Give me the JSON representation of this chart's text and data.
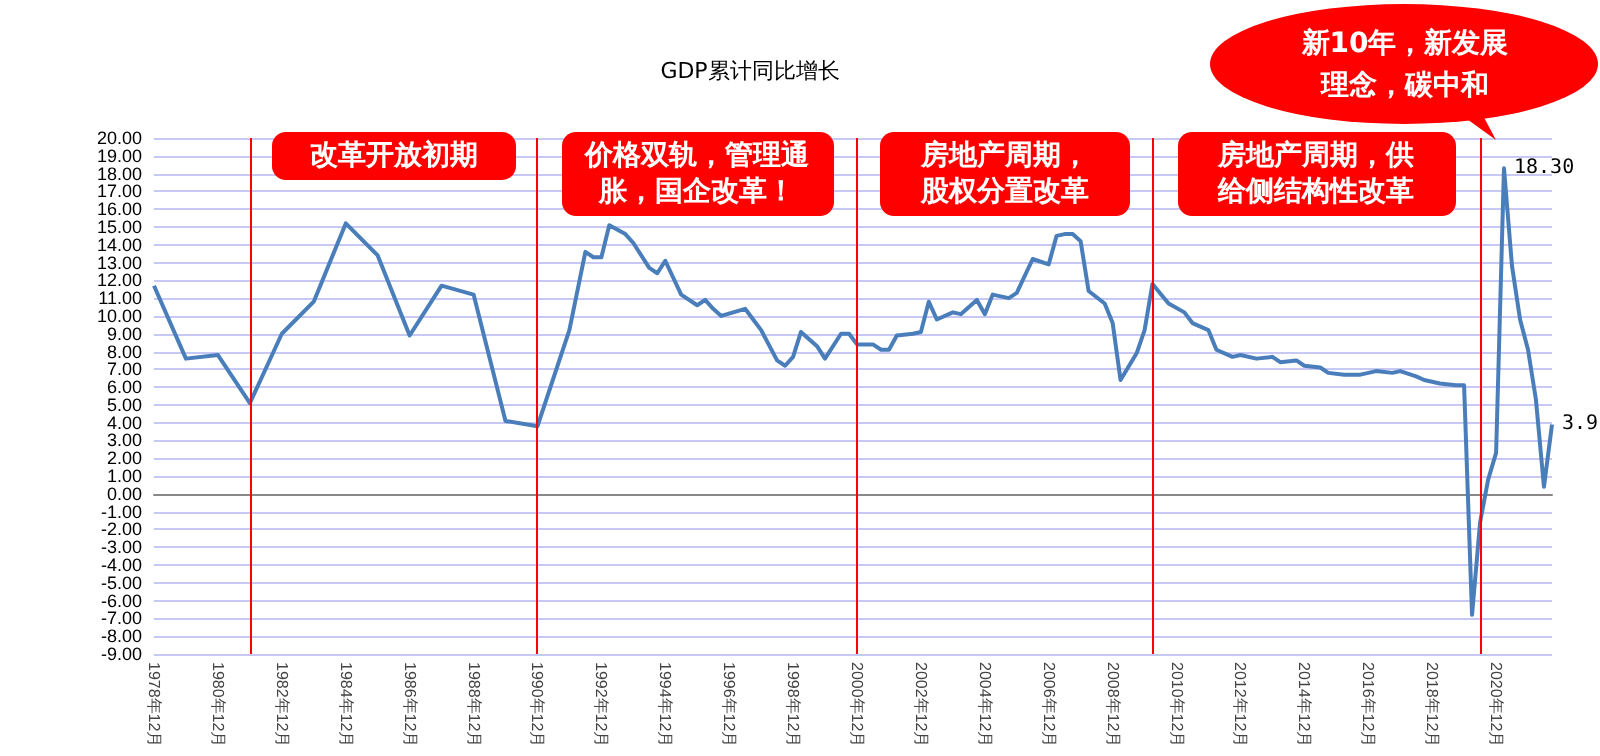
{
  "chart_data": {
    "type": "line",
    "title": "GDP累计同比增长",
    "color": "#4a7ebb",
    "marker": "none",
    "grid": "y",
    "x": [
      "1978-12",
      "1979-12",
      "1980-12",
      "1981-12",
      "1982-12",
      "1983-12",
      "1984-12",
      "1985-12",
      "1986-12",
      "1987-12",
      "1988-12",
      "1989-12",
      "1990-12",
      "1991-12",
      "1992-06",
      "1992-09",
      "1992-12",
      "1993-03",
      "1993-09",
      "1993-12",
      "1994-06",
      "1994-09",
      "1994-12",
      "1995-06",
      "1995-12",
      "1996-03",
      "1996-06",
      "1996-09",
      "1997-06",
      "1997-09",
      "1997-12",
      "1998-06",
      "1998-09",
      "1998-12",
      "1999-03",
      "1999-09",
      "1999-12",
      "2000-06",
      "2000-09",
      "2000-12",
      "2001-06",
      "2001-09",
      "2001-12",
      "2002-03",
      "2002-09",
      "2002-12",
      "2003-03",
      "2003-06",
      "2003-12",
      "2004-03",
      "2004-09",
      "2004-12",
      "2005-03",
      "2005-09",
      "2005-12",
      "2006-06",
      "2006-12",
      "2007-03",
      "2007-06",
      "2007-09",
      "2007-12",
      "2008-03",
      "2008-09",
      "2008-12",
      "2009-03",
      "2009-09",
      "2009-12",
      "2010-03",
      "2010-09",
      "2011-03",
      "2011-06",
      "2011-12",
      "2012-03",
      "2012-09",
      "2012-12",
      "2013-06",
      "2013-12",
      "2014-03",
      "2014-09",
      "2014-12",
      "2015-06",
      "2015-09",
      "2016-03",
      "2016-09",
      "2016-12",
      "2017-03",
      "2017-09",
      "2017-12",
      "2018-06",
      "2018-09",
      "2019-03",
      "2019-09",
      "2019-12",
      "2020-03",
      "2020-06",
      "2020-09",
      "2020-12",
      "2021-03",
      "2021-06",
      "2021-09",
      "2021-12",
      "2022-03",
      "2022-06",
      "2022-09"
    ],
    "values": [
      11.7,
      7.6,
      7.8,
      5.1,
      9.0,
      10.8,
      15.2,
      13.4,
      8.9,
      11.7,
      11.2,
      4.1,
      3.8,
      9.2,
      13.6,
      13.3,
      13.3,
      15.1,
      14.6,
      14.1,
      12.7,
      12.4,
      13.1,
      11.2,
      10.6,
      10.9,
      10.4,
      10.0,
      10.4,
      9.8,
      9.2,
      7.5,
      7.2,
      7.7,
      9.1,
      8.3,
      7.6,
      9.0,
      9.0,
      8.4,
      8.4,
      8.1,
      8.1,
      8.9,
      9.0,
      9.1,
      10.8,
      9.8,
      10.2,
      10.1,
      10.9,
      10.1,
      11.2,
      11.0,
      11.3,
      13.2,
      12.9,
      14.5,
      14.6,
      14.6,
      14.2,
      11.4,
      10.7,
      9.6,
      6.4,
      7.9,
      9.2,
      11.8,
      10.7,
      10.2,
      9.6,
      9.2,
      8.1,
      7.7,
      7.8,
      7.6,
      7.7,
      7.4,
      7.5,
      7.2,
      7.1,
      6.8,
      6.7,
      6.7,
      6.8,
      6.9,
      6.8,
      6.9,
      6.6,
      6.4,
      6.2,
      6.1,
      6.1,
      -6.8,
      -1.6,
      0.8,
      2.3,
      18.3,
      12.8,
      9.8,
      8.1,
      5.3,
      0.4,
      3.9
    ],
    "value_labels": [
      null,
      null,
      null,
      null,
      null,
      null,
      null,
      null,
      null,
      null,
      null,
      null,
      null,
      null,
      null,
      null,
      null,
      null,
      null,
      null,
      null,
      null,
      null,
      null,
      null,
      null,
      null,
      null,
      null,
      null,
      null,
      null,
      null,
      null,
      null,
      null,
      null,
      null,
      null,
      null,
      null,
      null,
      null,
      null,
      null,
      null,
      null,
      null,
      null,
      null,
      null,
      null,
      null,
      null,
      null,
      null,
      null,
      null,
      null,
      null,
      null,
      null,
      null,
      null,
      null,
      null,
      null,
      null,
      null,
      null,
      null,
      null,
      null,
      null,
      null,
      null,
      null,
      null,
      null,
      null,
      null,
      null,
      null,
      null,
      null,
      null,
      null,
      null,
      null,
      null,
      null,
      null,
      null,
      null,
      null,
      null,
      null,
      "18.30",
      null,
      null,
      null,
      null,
      null,
      "3.9"
    ],
    "xlim": [
      "1978-12",
      "2022-09"
    ],
    "xticks": [
      {
        "value": "1978-12",
        "label": "1978年12月"
      },
      {
        "value": "1980-12",
        "label": "1980年12月"
      },
      {
        "value": "1982-12",
        "label": "1982年12月"
      },
      {
        "value": "1984-12",
        "label": "1984年12月"
      },
      {
        "value": "1986-12",
        "label": "1986年12月"
      },
      {
        "value": "1988-12",
        "label": "1988年12月"
      },
      {
        "value": "1990-12",
        "label": "1990年12月"
      },
      {
        "value": "1992-12",
        "label": "1992年12月"
      },
      {
        "value": "1994-12",
        "label": "1994年12月"
      },
      {
        "value": "1996-12",
        "label": "1996年12月"
      },
      {
        "value": "1998-12",
        "label": "1998年12月"
      },
      {
        "value": "2000-12",
        "label": "2000年12月"
      },
      {
        "value": "2002-12",
        "label": "2002年12月"
      },
      {
        "value": "2004-12",
        "label": "2004年12月"
      },
      {
        "value": "2006-12",
        "label": "2006年12月"
      },
      {
        "value": "2008-12",
        "label": "2008年12月"
      },
      {
        "value": "2010-12",
        "label": "2010年12月"
      },
      {
        "value": "2012-12",
        "label": "2012年12月"
      },
      {
        "value": "2014-12",
        "label": "2014年12月"
      },
      {
        "value": "2016-12",
        "label": "2016年12月"
      },
      {
        "value": "2018-12",
        "label": "2018年12月"
      },
      {
        "value": "2020-12",
        "label": "2020年12月"
      }
    ],
    "ylim": [
      -9,
      20
    ],
    "yticks": [
      {
        "value": -9,
        "label": "-9.00"
      },
      {
        "value": -8,
        "label": "-8.00"
      },
      {
        "value": -7,
        "label": "-7.00"
      },
      {
        "value": -6,
        "label": "-6.00"
      },
      {
        "value": -5,
        "label": "-5.00"
      },
      {
        "value": -4,
        "label": "-4.00"
      },
      {
        "value": -3,
        "label": "-3.00"
      },
      {
        "value": -2,
        "label": "-2.00"
      },
      {
        "value": -1,
        "label": "-1.00"
      },
      {
        "value": 0,
        "label": "0.00"
      },
      {
        "value": 1,
        "label": "1.00"
      },
      {
        "value": 2,
        "label": "2.00"
      },
      {
        "value": 3,
        "label": "3.00"
      },
      {
        "value": 4,
        "label": "4.00"
      },
      {
        "value": 5,
        "label": "5.00"
      },
      {
        "value": 6,
        "label": "6.00"
      },
      {
        "value": 7,
        "label": "7.00"
      },
      {
        "value": 8,
        "label": "8.00"
      },
      {
        "value": 9,
        "label": "9.00"
      },
      {
        "value": 10,
        "label": "10.00"
      },
      {
        "value": 11,
        "label": "11.00"
      },
      {
        "value": 12,
        "label": "12.00"
      },
      {
        "value": 13,
        "label": "13.00"
      },
      {
        "value": 14,
        "label": "14.00"
      },
      {
        "value": 15,
        "label": "15.00"
      },
      {
        "value": 16,
        "label": "16.00"
      },
      {
        "value": 17,
        "label": "17.00"
      },
      {
        "value": 18,
        "label": "18.00"
      },
      {
        "value": 19,
        "label": "19.00"
      },
      {
        "value": 20,
        "label": "20.00"
      }
    ],
    "ref_lines": [
      {
        "axis": "x",
        "value": "1981-12",
        "color": "#ff0000"
      },
      {
        "axis": "x",
        "value": "1990-12",
        "color": "#ff0000"
      },
      {
        "axis": "x",
        "value": "2000-12",
        "color": "#ff0000"
      },
      {
        "axis": "x",
        "value": "2010-03",
        "color": "#ff0000"
      },
      {
        "axis": "x",
        "value": "2020-06",
        "color": "#ff0000"
      }
    ],
    "annotations": [
      "改革开放初期",
      "价格双轨，管理通胀，国企改革！",
      "房地产周期，股权分置改革",
      "房地产周期，供给侧结构性改革",
      "新10年，新发展理念，碳中和"
    ]
  }
}
